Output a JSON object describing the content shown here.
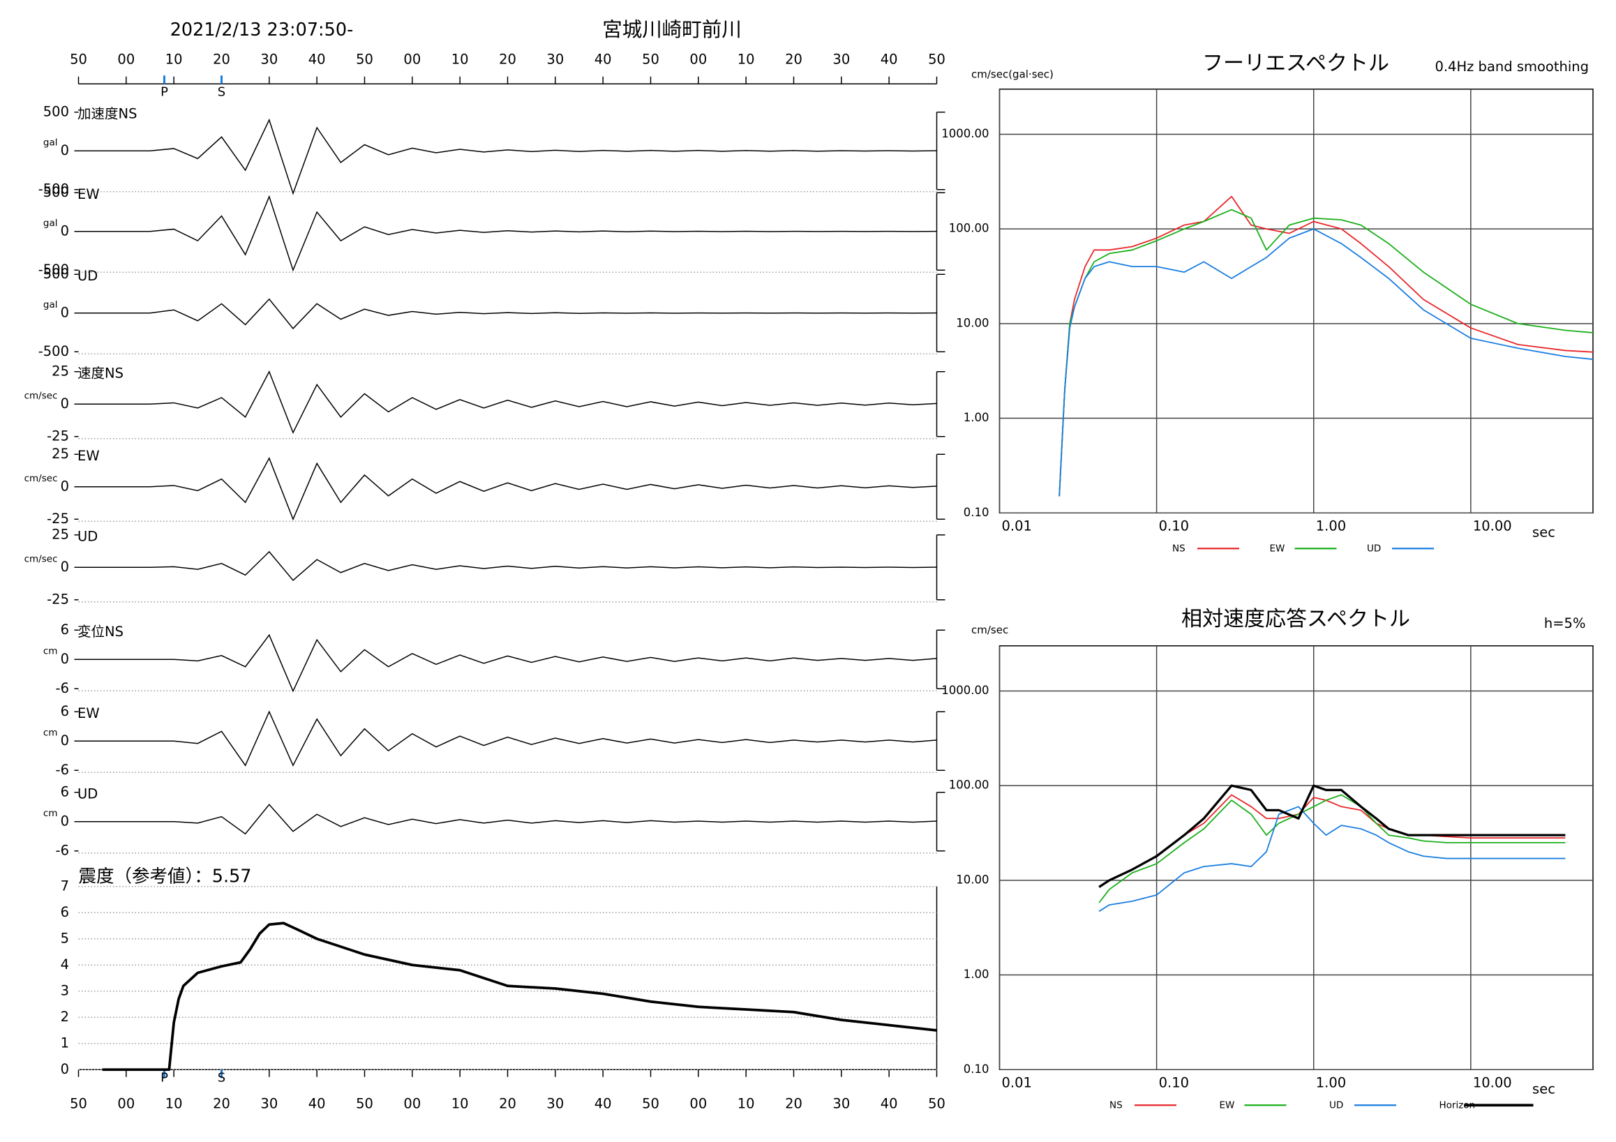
{
  "chart_data": [
    {
      "type": "waveform",
      "title": "2021/2/13 23:07:50-",
      "station": "宮城川崎町前川",
      "xlim": [
        0,
        180
      ],
      "xticks": [
        {
          "value": 0,
          "label": "50"
        },
        {
          "value": 10,
          "label": "00"
        },
        {
          "value": 20,
          "label": "10"
        },
        {
          "value": 30,
          "label": "20"
        },
        {
          "value": 40,
          "label": "30"
        },
        {
          "value": 50,
          "label": "40"
        },
        {
          "value": 60,
          "label": "50"
        },
        {
          "value": 70,
          "label": "00"
        },
        {
          "value": 80,
          "label": "10"
        },
        {
          "value": 90,
          "label": "20"
        },
        {
          "value": 100,
          "label": "30"
        },
        {
          "value": 110,
          "label": "40"
        },
        {
          "value": 120,
          "label": "50"
        },
        {
          "value": 130,
          "label": "00"
        },
        {
          "value": 140,
          "label": "10"
        },
        {
          "value": 150,
          "label": "20"
        },
        {
          "value": 160,
          "label": "30"
        },
        {
          "value": 170,
          "label": "40"
        },
        {
          "value": 180,
          "label": "50"
        }
      ],
      "phases": [
        {
          "value": 18,
          "label": "P"
        },
        {
          "value": 30,
          "label": "S"
        }
      ],
      "x": [
        0,
        5,
        10,
        15,
        20,
        25,
        30,
        35,
        40,
        45,
        50,
        55,
        60,
        65,
        70,
        75,
        80,
        85,
        90,
        95,
        100,
        105,
        110,
        115,
        120,
        125,
        130,
        135,
        140,
        145,
        150,
        155,
        160,
        165,
        170,
        175,
        180
      ],
      "traces": [
        {
          "name": "加速度NS",
          "unit": "gal",
          "ylim": [
            -500,
            500
          ],
          "yticks": [
            500,
            0,
            -500
          ],
          "values": [
            0,
            0,
            0,
            0,
            30,
            -100,
            180,
            -250,
            400,
            -550,
            300,
            -150,
            80,
            -50,
            35,
            -25,
            20,
            -15,
            12,
            -10,
            8,
            -8,
            6,
            -6,
            5,
            -5,
            5,
            -5,
            4,
            -4,
            4,
            -4,
            3,
            -3,
            3,
            -3,
            3
          ]
        },
        {
          "name": "EW",
          "unit": "gal",
          "ylim": [
            -500,
            500
          ],
          "yticks": [
            500,
            0,
            -500
          ],
          "values": [
            0,
            0,
            0,
            0,
            30,
            -120,
            200,
            -300,
            450,
            -500,
            250,
            -120,
            60,
            -40,
            25,
            -20,
            15,
            -12,
            10,
            -8,
            6,
            -5,
            5,
            -4,
            4,
            -3,
            3,
            -3,
            3,
            -3,
            2,
            -2,
            2,
            -2,
            2,
            -2,
            2
          ]
        },
        {
          "name": "UD",
          "unit": "gal",
          "ylim": [
            -500,
            500
          ],
          "yticks": [
            500,
            0,
            -500
          ],
          "values": [
            0,
            0,
            0,
            0,
            40,
            -100,
            120,
            -150,
            180,
            -200,
            120,
            -80,
            50,
            -30,
            20,
            -15,
            10,
            -8,
            6,
            -5,
            4,
            -4,
            3,
            -3,
            3,
            -3,
            2,
            -2,
            2,
            -2,
            2,
            -2,
            2,
            -2,
            2,
            -2,
            2
          ]
        },
        {
          "name": "速度NS",
          "unit": "cm/sec",
          "ylim": [
            -25,
            25
          ],
          "yticks": [
            25,
            0,
            -25
          ],
          "values": [
            0,
            0,
            0,
            0,
            1,
            -3,
            5,
            -10,
            25,
            -22,
            15,
            -10,
            8,
            -6,
            5,
            -4,
            3.5,
            -3,
            3,
            -2.5,
            2.5,
            -2,
            2,
            -2,
            1.8,
            -1.5,
            1.5,
            -1.2,
            1.2,
            -1,
            1,
            -1,
            0.8,
            -0.8,
            0.8,
            -0.6,
            0.5
          ]
        },
        {
          "name": "EW",
          "unit": "cm/sec",
          "ylim": [
            -25,
            25
          ],
          "yticks": [
            25,
            0,
            -25
          ],
          "values": [
            0,
            0,
            0,
            0,
            1,
            -3,
            6,
            -12,
            22,
            -25,
            18,
            -12,
            9,
            -7,
            6,
            -5,
            4,
            -3.5,
            3,
            -3,
            2.5,
            -2,
            2,
            -2,
            1.8,
            -1.5,
            1.5,
            -1.2,
            1.2,
            -1,
            1,
            -1,
            0.8,
            -0.8,
            0.7,
            -0.6,
            0.5
          ]
        },
        {
          "name": "UD",
          "unit": "cm/sec",
          "ylim": [
            -25,
            25
          ],
          "yticks": [
            25,
            0,
            -25
          ],
          "values": [
            0,
            0,
            0,
            0,
            0.5,
            -1.5,
            3,
            -6,
            12,
            -10,
            6,
            -4,
            3,
            -2.5,
            2,
            -1.5,
            1.2,
            -1,
            1,
            -0.8,
            0.8,
            -0.6,
            0.6,
            -0.5,
            0.5,
            -0.4,
            0.4,
            -0.3,
            0.3,
            -0.3,
            0.3,
            -0.2,
            0.2,
            -0.2,
            0.2,
            -0.2,
            0.2
          ]
        },
        {
          "name": "変位NS",
          "unit": "cm",
          "ylim": [
            -6,
            6
          ],
          "yticks": [
            6,
            0,
            -6
          ],
          "values": [
            0,
            0,
            0,
            0,
            0,
            -0.3,
            0.8,
            -1.5,
            5,
            -6.5,
            4,
            -2.5,
            2,
            -1.5,
            1.2,
            -1,
            0.9,
            -0.8,
            0.7,
            -0.6,
            0.6,
            -0.5,
            0.5,
            -0.4,
            0.4,
            -0.4,
            0.3,
            -0.3,
            0.3,
            -0.3,
            0.3,
            -0.2,
            0.2,
            -0.2,
            0.2,
            -0.2,
            0.2
          ]
        },
        {
          "name": "EW",
          "unit": "cm",
          "ylim": [
            -6,
            6
          ],
          "yticks": [
            6,
            0,
            -6
          ],
          "values": [
            0,
            0,
            0,
            0,
            0,
            -0.5,
            2,
            -5,
            6,
            -5,
            4.5,
            -3,
            2.5,
            -2,
            1.5,
            -1.2,
            1,
            -0.9,
            0.8,
            -0.7,
            0.6,
            -0.5,
            0.5,
            -0.4,
            0.4,
            -0.4,
            0.3,
            -0.3,
            0.3,
            -0.3,
            0.2,
            -0.2,
            0.2,
            -0.2,
            0.2,
            -0.2,
            0.2
          ]
        },
        {
          "name": "UD",
          "unit": "cm",
          "ylim": [
            -6,
            6
          ],
          "yticks": [
            6,
            0,
            -6
          ],
          "values": [
            0,
            0,
            0,
            0,
            0,
            -0.3,
            1,
            -2.5,
            3.5,
            -2,
            1.5,
            -1,
            0.8,
            -0.6,
            0.5,
            -0.4,
            0.4,
            -0.3,
            0.3,
            -0.3,
            0.2,
            -0.2,
            0.2,
            -0.2,
            0.2,
            -0.1,
            0.1,
            -0.1,
            0.1,
            -0.1,
            0.1,
            -0.1,
            0.1,
            -0.1,
            0.1,
            -0.1,
            0.1
          ]
        }
      ]
    },
    {
      "type": "line",
      "title": "震度（参考値）：5.57",
      "color": "#000000",
      "grid": true,
      "grid_style": "dotted",
      "xlim": [
        0,
        180
      ],
      "x": [
        5,
        19,
        20,
        21,
        22,
        25,
        30,
        34,
        36,
        38,
        40,
        43,
        46,
        50,
        55,
        60,
        70,
        80,
        90,
        100,
        110,
        120,
        130,
        140,
        150,
        160,
        170,
        180
      ],
      "values": [
        0,
        0,
        1.8,
        2.7,
        3.2,
        3.7,
        3.95,
        4.1,
        4.6,
        5.2,
        5.55,
        5.6,
        5.35,
        5.0,
        4.7,
        4.4,
        4.0,
        3.8,
        3.2,
        3.1,
        2.9,
        2.6,
        2.4,
        2.3,
        2.2,
        1.9,
        1.7,
        1.5
      ],
      "ylim": [
        0,
        7
      ],
      "yticks": [
        0,
        1,
        2,
        3,
        4,
        5,
        6,
        7
      ]
    },
    {
      "type": "line",
      "title": "フーリエスペクトル",
      "subtitle": "0.4Hz band smoothing",
      "y_label": "cm/sec(gal·sec)",
      "x_label": "sec",
      "log_x": true,
      "log_y": true,
      "grid": true,
      "grid_style": "solid",
      "xlim": [
        0.01,
        60
      ],
      "xticks": [
        0.01,
        {
          "value": 0.1,
          "label": "0.10"
        },
        {
          "value": 1,
          "label": "1.00"
        },
        {
          "value": 10,
          "label": "10.00"
        }
      ],
      "ylim": [
        0.1,
        3000
      ],
      "yticks": [
        {
          "value": 0.1,
          "label": "0.10"
        },
        {
          "value": 1,
          "label": "1.00"
        },
        {
          "value": 10,
          "label": "10.00"
        },
        {
          "value": 100,
          "label": "100.00"
        },
        {
          "value": 1000,
          "label": "1000.00"
        }
      ],
      "x": [
        0.024,
        0.026,
        0.028,
        0.03,
        0.035,
        0.04,
        0.05,
        0.07,
        0.1,
        0.15,
        0.2,
        0.3,
        0.4,
        0.5,
        0.7,
        1,
        1.5,
        2,
        3,
        5,
        10,
        20,
        40,
        60
      ],
      "series": [
        {
          "name": "NS",
          "color": "#e8262a",
          "values": [
            0.15,
            2,
            10,
            18,
            40,
            60,
            60,
            65,
            80,
            110,
            120,
            220,
            110,
            100,
            90,
            120,
            100,
            70,
            40,
            18,
            9,
            6,
            5.2,
            5
          ]
        },
        {
          "name": "EW",
          "color": "#1aaf1a",
          "values": [
            0.15,
            2,
            10,
            15,
            30,
            45,
            55,
            60,
            75,
            100,
            120,
            160,
            130,
            60,
            110,
            130,
            125,
            110,
            70,
            35,
            16,
            10,
            8.5,
            8
          ]
        },
        {
          "name": "UD",
          "color": "#1a7de0",
          "values": [
            0.15,
            2,
            9,
            15,
            30,
            40,
            45,
            40,
            40,
            35,
            45,
            30,
            40,
            50,
            80,
            100,
            70,
            50,
            30,
            14,
            7,
            5.5,
            4.5,
            4.2
          ]
        }
      ]
    },
    {
      "type": "line",
      "title": "相対速度応答スペクトル",
      "subtitle": "h=5%",
      "y_label": "cm/sec",
      "x_label": "sec",
      "log_x": true,
      "log_y": true,
      "grid": true,
      "grid_style": "solid",
      "xlim": [
        0.01,
        60
      ],
      "xticks": [
        0.01,
        {
          "value": 0.1,
          "label": "0.10"
        },
        {
          "value": 1,
          "label": "1.00"
        },
        {
          "value": 10,
          "label": "10.00"
        }
      ],
      "ylim": [
        0.1,
        3000
      ],
      "yticks": [
        {
          "value": 0.1,
          "label": "0.10"
        },
        {
          "value": 1,
          "label": "1.00"
        },
        {
          "value": 10,
          "label": "10.00"
        },
        {
          "value": 100,
          "label": "100.00"
        },
        {
          "value": 1000,
          "label": "1000.00"
        }
      ],
      "x": [
        0.043,
        0.05,
        0.07,
        0.1,
        0.15,
        0.2,
        0.3,
        0.4,
        0.5,
        0.6,
        0.8,
        1,
        1.2,
        1.5,
        2,
        2.5,
        3,
        4,
        5,
        7,
        10,
        20,
        40
      ],
      "series": [
        {
          "name": "NS",
          "color": "#e8262a",
          "values": [
            8.5,
            10,
            13,
            18,
            30,
            40,
            80,
            60,
            45,
            45,
            50,
            75,
            70,
            60,
            55,
            40,
            35,
            30,
            30,
            29,
            28,
            28,
            28
          ]
        },
        {
          "name": "EW",
          "color": "#1aaf1a",
          "values": [
            5.8,
            8,
            12,
            15,
            25,
            35,
            70,
            50,
            30,
            40,
            50,
            60,
            70,
            80,
            60,
            40,
            30,
            28,
            26,
            25,
            25,
            25,
            25
          ]
        },
        {
          "name": "UD",
          "color": "#1a7de0",
          "values": [
            4.7,
            5.5,
            6,
            7,
            12,
            14,
            15,
            14,
            20,
            50,
            60,
            40,
            30,
            38,
            35,
            30,
            25,
            20,
            18,
            17,
            17,
            17,
            17
          ]
        },
        {
          "name": "Horizon",
          "color": "#000000",
          "values": [
            8.5,
            10,
            13,
            18,
            30,
            45,
            100,
            90,
            55,
            55,
            45,
            100,
            90,
            90,
            60,
            45,
            35,
            30,
            30,
            30,
            30,
            30,
            30
          ]
        }
      ]
    }
  ]
}
